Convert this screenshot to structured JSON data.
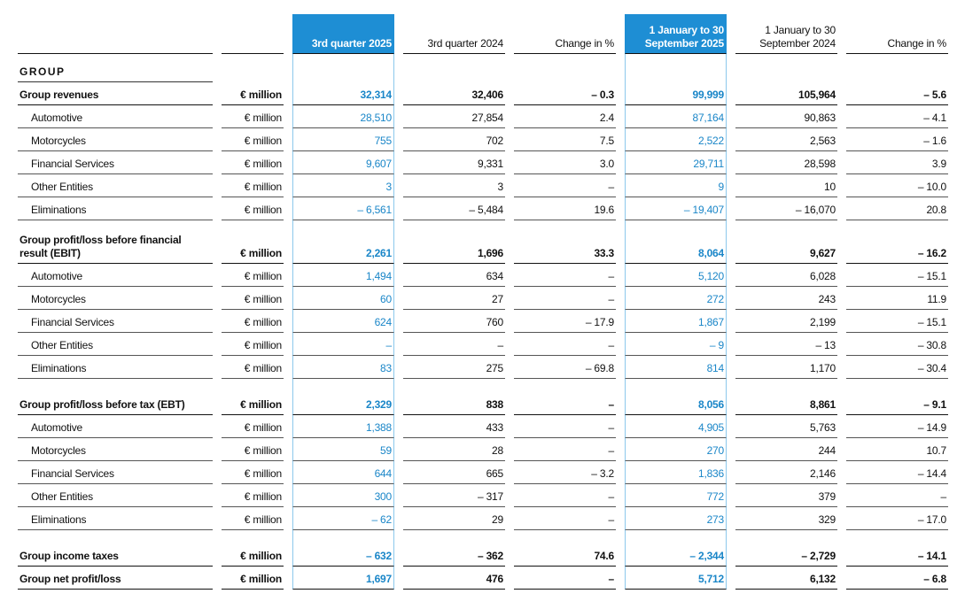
{
  "table": {
    "header": {
      "columns": [
        "3rd quarter 2025",
        "3rd quarter 2024",
        "Change in %",
        "1 January to 30 September 2025",
        "1 January to 30 September 2024",
        "Change in %"
      ]
    },
    "highlight_columns": [
      0,
      3
    ],
    "group_label": "GROUP",
    "sections": [
      {
        "rows": [
          {
            "label": "Group revenues",
            "unit": "€ million",
            "bold": true,
            "values": [
              "32,314",
              "32,406",
              "– 0.3",
              "99,999",
              "105,964",
              "– 5.6"
            ]
          },
          {
            "label": "Automotive",
            "unit": "€ million",
            "values": [
              "28,510",
              "27,854",
              "2.4",
              "87,164",
              "90,863",
              "– 4.1"
            ]
          },
          {
            "label": "Motorcycles",
            "unit": "€ million",
            "values": [
              "755",
              "702",
              "7.5",
              "2,522",
              "2,563",
              "– 1.6"
            ]
          },
          {
            "label": "Financial Services",
            "unit": "€ million",
            "values": [
              "9,607",
              "9,331",
              "3.0",
              "29,711",
              "28,598",
              "3.9"
            ]
          },
          {
            "label": "Other Entities",
            "unit": "€ million",
            "values": [
              "3",
              "3",
              "–",
              "9",
              "10",
              "– 10.0"
            ]
          },
          {
            "label": "Eliminations",
            "unit": "€ million",
            "values": [
              "– 6,561",
              "– 5,484",
              "19.6",
              "– 19,407",
              "– 16,070",
              "20.8"
            ]
          }
        ]
      },
      {
        "rows": [
          {
            "label": "Group profit/loss before financial result (EBIT)",
            "unit": "€ million",
            "bold": true,
            "values": [
              "2,261",
              "1,696",
              "33.3",
              "8,064",
              "9,627",
              "– 16.2"
            ]
          },
          {
            "label": "Automotive",
            "unit": "€ million",
            "values": [
              "1,494",
              "634",
              "–",
              "5,120",
              "6,028",
              "– 15.1"
            ]
          },
          {
            "label": "Motorcycles",
            "unit": "€ million",
            "values": [
              "60",
              "27",
              "–",
              "272",
              "243",
              "11.9"
            ]
          },
          {
            "label": "Financial Services",
            "unit": "€ million",
            "values": [
              "624",
              "760",
              "– 17.9",
              "1,867",
              "2,199",
              "– 15.1"
            ]
          },
          {
            "label": "Other Entities",
            "unit": "€ million",
            "values": [
              "–",
              "–",
              "–",
              "– 9",
              "– 13",
              "– 30.8"
            ]
          },
          {
            "label": "Eliminations",
            "unit": "€ million",
            "values": [
              "83",
              "275",
              "– 69.8",
              "814",
              "1,170",
              "– 30.4"
            ]
          }
        ]
      },
      {
        "rows": [
          {
            "label": "Group profit/loss before tax (EBT)",
            "unit": "€ million",
            "bold": true,
            "values": [
              "2,329",
              "838",
              "–",
              "8,056",
              "8,861",
              "– 9.1"
            ]
          },
          {
            "label": "Automotive",
            "unit": "€ million",
            "values": [
              "1,388",
              "433",
              "–",
              "4,905",
              "5,763",
              "– 14.9"
            ]
          },
          {
            "label": "Motorcycles",
            "unit": "€ million",
            "values": [
              "59",
              "28",
              "–",
              "270",
              "244",
              "10.7"
            ]
          },
          {
            "label": "Financial Services",
            "unit": "€ million",
            "values": [
              "644",
              "665",
              "– 3.2",
              "1,836",
              "2,146",
              "– 14.4"
            ]
          },
          {
            "label": "Other Entities",
            "unit": "€ million",
            "values": [
              "300",
              "– 317",
              "–",
              "772",
              "379",
              "–"
            ]
          },
          {
            "label": "Eliminations",
            "unit": "€ million",
            "values": [
              "– 62",
              "29",
              "–",
              "273",
              "329",
              "– 17.0"
            ]
          }
        ]
      },
      {
        "rows": [
          {
            "label": "Group income taxes",
            "unit": "€ million",
            "bold": true,
            "values": [
              "– 632",
              "– 362",
              "74.6",
              "– 2,344",
              "– 2,729",
              "– 14.1"
            ]
          },
          {
            "label": "Group net profit/loss",
            "unit": "€ million",
            "bold": true,
            "values": [
              "1,697",
              "476",
              "–",
              "5,712",
              "6,132",
              "– 6.8"
            ]
          }
        ]
      }
    ]
  }
}
